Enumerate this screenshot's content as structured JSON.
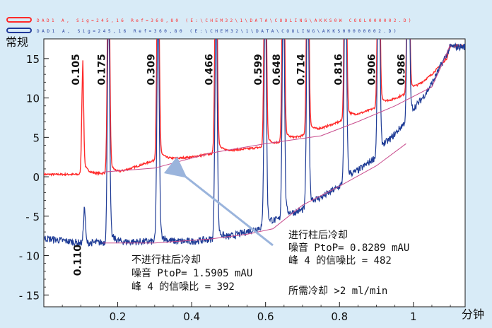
{
  "legend": [
    {
      "name": "DAD1 A, Sig=245,16 Ref=360,80 (E:\\CHEM32\\1\\DATA\\COOLING\\AKKS0W COOL000002.D)",
      "color": "#ff2a2a"
    },
    {
      "name": "DAD1 A, Sig=245,16 Ref=360,80 (E:\\CHEM32\\1\\DATA\\COOLING\\AKKS00000002.D)",
      "color": "#203a9a"
    }
  ],
  "colors": {
    "cooled": "#ff2a2a",
    "uncooled": "#1f3c96",
    "baseline": "#c84a8c",
    "arrow": "#9ab4dc",
    "plot_bg": "#ffffff"
  },
  "annotations": {
    "cooled": {
      "title": "进行柱后冷却",
      "noise": "噪音 PtoP= 0.8289 mAU",
      "sn": "峰 4 的信噪比 = 482"
    },
    "uncooled": {
      "title": "不进行柱后冷却",
      "noise": "噪音 PtoP= 1.5905 mAU",
      "sn": "峰 4 的信噪比 = 392"
    },
    "flow": "所需冷却 >2 ml/min"
  },
  "chart_data": {
    "type": "line",
    "ylabel": "常规",
    "xlabel": "分钟",
    "xlim": [
      0,
      1.14
    ],
    "ylim": [
      -16.5,
      17.5
    ],
    "x_ticks": [
      {
        "v": 0.2,
        "label": "0.2"
      },
      {
        "v": 0.4,
        "label": "0.4"
      },
      {
        "v": 0.6,
        "label": "0.6"
      },
      {
        "v": 0.8,
        "label": "0.8"
      },
      {
        "v": 1.0,
        "label": "1"
      }
    ],
    "y_ticks": [
      {
        "v": 15,
        "label": "15"
      },
      {
        "v": 10,
        "label": "10"
      },
      {
        "v": 5,
        "label": "5"
      },
      {
        "v": 0,
        "label": "0"
      },
      {
        "v": -5,
        "label": "- 5"
      },
      {
        "v": -10,
        "label": "- 10"
      },
      {
        "v": -15,
        "label": "- 15"
      }
    ],
    "peak_labels": [
      {
        "x": 0.105,
        "y": 15.6,
        "label": "0.105"
      },
      {
        "x": 0.175,
        "y": 15.6,
        "label": "0.175"
      },
      {
        "x": 0.309,
        "y": 15.6,
        "label": "0.309"
      },
      {
        "x": 0.466,
        "y": 15.6,
        "label": "0.466"
      },
      {
        "x": 0.599,
        "y": 15.6,
        "label": "0.599"
      },
      {
        "x": 0.648,
        "y": 15.6,
        "label": "0.648"
      },
      {
        "x": 0.714,
        "y": 15.6,
        "label": "0.714"
      },
      {
        "x": 0.816,
        "y": 15.6,
        "label": "0.816"
      },
      {
        "x": 0.906,
        "y": 15.6,
        "label": "0.906"
      },
      {
        "x": 0.986,
        "y": 15.6,
        "label": "0.986"
      },
      {
        "x": 0.11,
        "y": -8.6,
        "label": "0.110"
      }
    ],
    "series": [
      {
        "name": "DAD1 A, Sig=245,16 Ref=360,80 (E:\\CHEM32\\1\\DATA\\COOLING\\AKKS0W COOL000002.D)",
        "baseline": [
          [
            0.0,
            0.3
          ],
          [
            0.1,
            0.3
          ],
          [
            0.2,
            0.5
          ],
          [
            0.3,
            2.1
          ],
          [
            0.4,
            2.5
          ],
          [
            0.5,
            3.3
          ],
          [
            0.6,
            3.8
          ],
          [
            0.7,
            5.2
          ],
          [
            0.8,
            7.0
          ],
          [
            0.9,
            8.8
          ],
          [
            1.0,
            11.0
          ],
          [
            1.05,
            13.0
          ],
          [
            1.09,
            15.0
          ],
          [
            1.1,
            16.6
          ]
        ],
        "peaks": [
          {
            "x": 0.105,
            "h": 13.0,
            "w": 0.0025
          },
          {
            "x": 0.175,
            "h": 30,
            "w": 0.003
          },
          {
            "x": 0.309,
            "h": 30,
            "w": 0.003
          },
          {
            "x": 0.466,
            "h": 30,
            "w": 0.003
          },
          {
            "x": 0.599,
            "h": 30,
            "w": 0.003
          },
          {
            "x": 0.648,
            "h": 30,
            "w": 0.003
          },
          {
            "x": 0.714,
            "h": 30,
            "w": 0.003
          },
          {
            "x": 0.816,
            "h": 30,
            "w": 0.003
          },
          {
            "x": 0.906,
            "h": 30,
            "w": 0.003
          },
          {
            "x": 0.986,
            "h": 30,
            "w": 0.003
          }
        ]
      },
      {
        "name": "DAD1 A, Sig=245,16 Ref=360,80 (E:\\CHEM32\\1\\DATA\\COOLING\\AKKS00000002.D)",
        "baseline": [
          [
            0.0,
            -7.8
          ],
          [
            0.1,
            -8.4
          ],
          [
            0.2,
            -8.3
          ],
          [
            0.3,
            -8.2
          ],
          [
            0.4,
            -8.2
          ],
          [
            0.5,
            -7.7
          ],
          [
            0.6,
            -6.2
          ],
          [
            0.7,
            -4.2
          ],
          [
            0.8,
            -1.2
          ],
          [
            0.9,
            2.6
          ],
          [
            1.0,
            8.2
          ],
          [
            1.05,
            11.8
          ],
          [
            1.1,
            16.5
          ]
        ],
        "peaks": [
          {
            "x": 0.11,
            "h": 4.5,
            "w": 0.0025
          },
          {
            "x": 0.175,
            "h": 30,
            "w": 0.003
          },
          {
            "x": 0.309,
            "h": 30,
            "w": 0.003
          },
          {
            "x": 0.466,
            "h": 30,
            "w": 0.003
          },
          {
            "x": 0.599,
            "h": 30,
            "w": 0.003
          },
          {
            "x": 0.648,
            "h": 30,
            "w": 0.003
          },
          {
            "x": 0.714,
            "h": 30,
            "w": 0.003
          },
          {
            "x": 0.816,
            "h": 30,
            "w": 0.003
          },
          {
            "x": 0.906,
            "h": 30,
            "w": 0.003
          },
          {
            "x": 0.986,
            "h": 30,
            "w": 0.003
          }
        ]
      }
    ],
    "baselines": [
      {
        "name": "cooled-baseline",
        "points": [
          [
            0.16,
            0.6
          ],
          [
            0.3,
            1.1
          ],
          [
            0.45,
            3.0
          ],
          [
            0.6,
            4.2
          ],
          [
            0.75,
            5.2
          ],
          [
            0.85,
            7.0
          ],
          [
            0.95,
            9.0
          ],
          [
            1.05,
            11.4
          ],
          [
            1.08,
            14.5
          ],
          [
            1.1,
            16.8
          ]
        ]
      },
      {
        "name": "uncooled-baseline",
        "points": [
          [
            0.16,
            -8.4
          ],
          [
            0.3,
            -8.4
          ],
          [
            0.45,
            -7.9
          ],
          [
            0.55,
            -7.3
          ],
          [
            0.62,
            -6.6
          ],
          [
            0.7,
            -3.6
          ],
          [
            0.8,
            -1.2
          ],
          [
            0.9,
            1.4
          ],
          [
            0.98,
            4.2
          ]
        ]
      }
    ]
  }
}
